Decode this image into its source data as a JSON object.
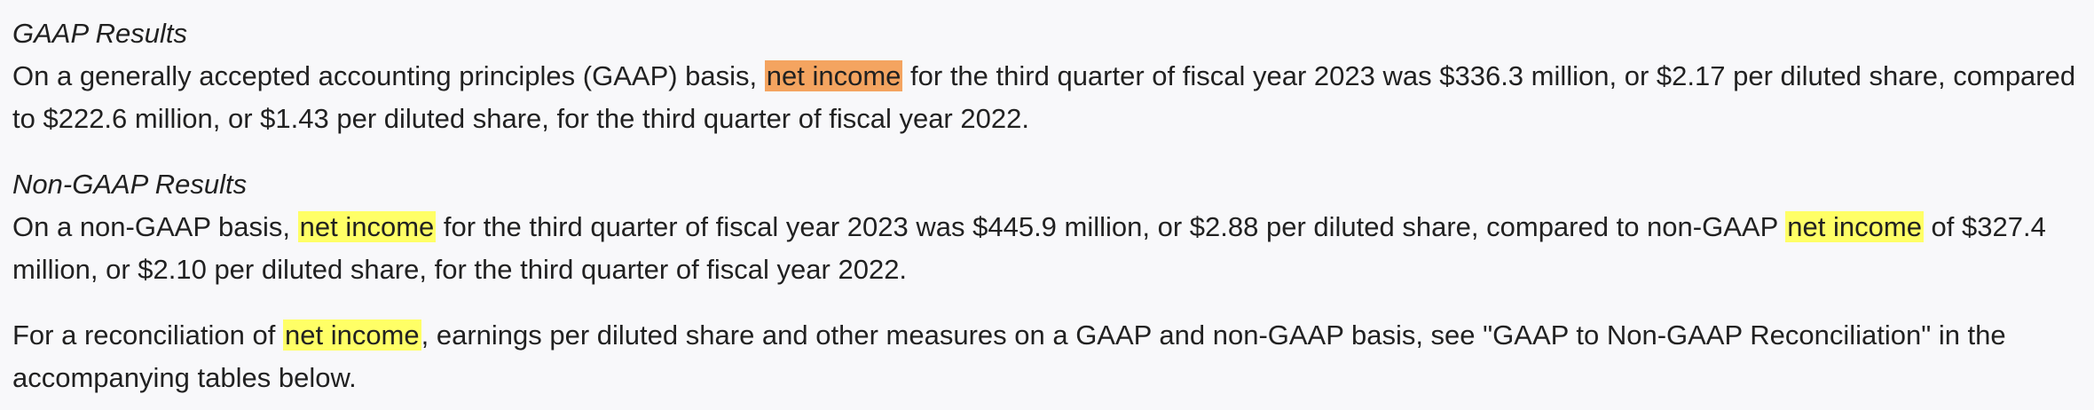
{
  "colors": {
    "highlight_active": "#f4a460",
    "highlight": "#ffff66",
    "text": "#212121",
    "background": "#f8f8fa"
  },
  "gaap": {
    "heading": "GAAP Results",
    "p1_before": "On a generally accepted accounting principles (GAAP) basis, ",
    "p1_hl": "net income",
    "p1_after": " for the third quarter of fiscal year 2023 was $336.3 million, or $2.17 per diluted share, compared to $222.6 million, or $1.43 per diluted share, for the third quarter of fiscal year 2022."
  },
  "non_gaap": {
    "heading": "Non-GAAP Results",
    "p2_before": "On a non-GAAP basis, ",
    "p2_hl1": "net income",
    "p2_mid": " for the third quarter of fiscal year 2023 was $445.9 million, or $2.88 per diluted share, compared to non-GAAP ",
    "p2_hl2": "net income",
    "p2_after": " of $327.4 million, or $2.10 per diluted share, for the third quarter of fiscal year 2022."
  },
  "reconciliation": {
    "p3_before": "For a reconciliation of ",
    "p3_hl": "net income",
    "p3_after": ", earnings per diluted share and other measures on a GAAP and non-GAAP basis, see \"GAAP to Non-GAAP Reconciliation\" in the accompanying tables below."
  }
}
